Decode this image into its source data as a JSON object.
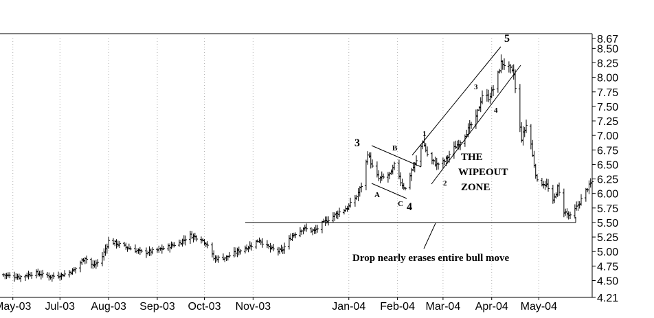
{
  "chart_data": {
    "type": "ohlc",
    "title": "",
    "xlabel": "",
    "ylabel": "",
    "ylim": [
      4.21,
      8.67
    ],
    "grid": "vertical dotted",
    "y_ticks": [
      4.21,
      4.5,
      4.75,
      5.0,
      5.25,
      5.5,
      5.75,
      6.0,
      6.25,
      6.5,
      6.75,
      7.0,
      7.25,
      7.5,
      7.75,
      8.0,
      8.25,
      8.5,
      8.67
    ],
    "y_tick_labels": [
      "4.21",
      "4.50",
      "4.75",
      "5.00",
      "5.25",
      "5.50",
      "5.75",
      "6.00",
      "6.25",
      "6.50",
      "6.75",
      "7.00",
      "7.25",
      "7.50",
      "7.75",
      "8.00",
      "8.25",
      "8.50",
      "8.67"
    ],
    "x_start": "2003-05-26",
    "x_end": "2004-06-04",
    "x_ticks": [
      {
        "date": "2003-06-01",
        "label": "May-03"
      },
      {
        "date": "2003-07-01",
        "label": "Jul-03"
      },
      {
        "date": "2003-08-01",
        "label": "Aug-03"
      },
      {
        "date": "2003-09-01",
        "label": "Sep-03"
      },
      {
        "date": "2003-10-01",
        "label": "Oct-03"
      },
      {
        "date": "2003-11-01",
        "label": "Nov-03"
      },
      {
        "date": "2004-01-01",
        "label": "Jan-04"
      },
      {
        "date": "2004-02-01",
        "label": "Feb-04"
      },
      {
        "date": "2004-03-01",
        "label": "Mar-04"
      },
      {
        "date": "2004-04-01",
        "label": "Apr-04"
      },
      {
        "date": "2004-05-01",
        "label": "May-04"
      }
    ],
    "close_path": [
      [
        "2003-05-26",
        4.6
      ],
      [
        "2003-06-05",
        4.56
      ],
      [
        "2003-06-15",
        4.63
      ],
      [
        "2003-06-25",
        4.57
      ],
      [
        "2003-07-03",
        4.6
      ],
      [
        "2003-07-10",
        4.68
      ],
      [
        "2003-07-17",
        4.9
      ],
      [
        "2003-07-22",
        4.75
      ],
      [
        "2003-07-27",
        4.85
      ],
      [
        "2003-08-01",
        5.18
      ],
      [
        "2003-08-08",
        5.12
      ],
      [
        "2003-08-15",
        5.05
      ],
      [
        "2003-08-23",
        4.98
      ],
      [
        "2003-09-01",
        5.02
      ],
      [
        "2003-09-08",
        5.08
      ],
      [
        "2003-09-15",
        5.15
      ],
      [
        "2003-09-22",
        5.28
      ],
      [
        "2003-09-29",
        5.22
      ],
      [
        "2003-10-03",
        5.12
      ],
      [
        "2003-10-07",
        4.88
      ],
      [
        "2003-10-15",
        4.9
      ],
      [
        "2003-10-22",
        5.0
      ],
      [
        "2003-10-29",
        5.08
      ],
      [
        "2003-11-05",
        5.2
      ],
      [
        "2003-11-12",
        5.05
      ],
      [
        "2003-11-19",
        5.0
      ],
      [
        "2003-11-26",
        5.28
      ],
      [
        "2003-12-03",
        5.4
      ],
      [
        "2003-12-10",
        5.35
      ],
      [
        "2003-12-17",
        5.52
      ],
      [
        "2003-12-24",
        5.65
      ],
      [
        "2003-12-31",
        5.75
      ],
      [
        "2004-01-06",
        5.95
      ],
      [
        "2004-01-10",
        6.2
      ],
      [
        "2004-01-13",
        6.7
      ],
      [
        "2004-01-16",
        6.45
      ],
      [
        "2004-01-20",
        6.25
      ],
      [
        "2004-01-24",
        6.28
      ],
      [
        "2004-01-28",
        6.35
      ],
      [
        "2004-01-31",
        6.55
      ],
      [
        "2004-02-03",
        6.2
      ],
      [
        "2004-02-06",
        6.08
      ],
      [
        "2004-02-10",
        6.4
      ],
      [
        "2004-02-13",
        6.55
      ],
      [
        "2004-02-17",
        6.9
      ],
      [
        "2004-02-21",
        6.6
      ],
      [
        "2004-02-26",
        6.5
      ],
      [
        "2004-03-02",
        6.55
      ],
      [
        "2004-03-07",
        6.75
      ],
      [
        "2004-03-12",
        6.9
      ],
      [
        "2004-03-17",
        7.1
      ],
      [
        "2004-03-22",
        7.3
      ],
      [
        "2004-03-26",
        7.7
      ],
      [
        "2004-03-30",
        7.65
      ],
      [
        "2004-04-03",
        7.85
      ],
      [
        "2004-04-07",
        8.25
      ],
      [
        "2004-04-11",
        8.2
      ],
      [
        "2004-04-15",
        8.05
      ],
      [
        "2004-04-18",
        7.3
      ],
      [
        "2004-04-20",
        6.95
      ],
      [
        "2004-04-24",
        7.25
      ],
      [
        "2004-04-27",
        6.65
      ],
      [
        "2004-04-30",
        6.2
      ],
      [
        "2004-05-06",
        6.15
      ],
      [
        "2004-05-10",
        5.85
      ],
      [
        "2004-05-13",
        6.1
      ],
      [
        "2004-05-17",
        5.7
      ],
      [
        "2004-05-21",
        5.6
      ],
      [
        "2004-05-26",
        5.8
      ],
      [
        "2004-05-31",
        6.05
      ],
      [
        "2004-06-04",
        6.2
      ]
    ],
    "annotations": {
      "wave_3": "3",
      "wave_4": "4",
      "wave_5": "5",
      "sub_a": "A",
      "sub_b": "B",
      "sub_c": "C",
      "sub_1": "1",
      "sub_2": "2",
      "sub_3": "3",
      "sub_4": "4",
      "zone_line1": "THE",
      "zone_line2": "WIPEOUT",
      "zone_line3": "ZONE",
      "drop_note": "Drop nearly erases entire bull move"
    },
    "support_level": 5.5,
    "colors": {
      "bars": "#000000",
      "background": "#ffffff",
      "grid": "#b0b0b0"
    }
  }
}
